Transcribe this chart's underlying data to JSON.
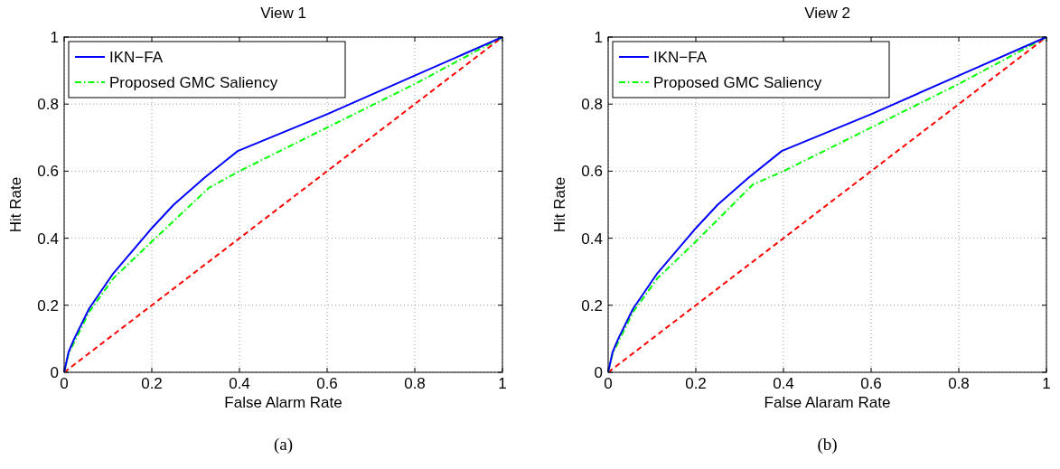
{
  "chart_data": [
    {
      "type": "line",
      "title": "View 1",
      "xlabel": "False Alarm Rate",
      "ylabel": "Hit Rate",
      "annotations": [
        "(a)"
      ],
      "xlim": [
        0,
        1
      ],
      "ylim": [
        0,
        1
      ],
      "xticks": [
        0,
        0.2,
        0.4,
        0.6,
        0.8,
        1
      ],
      "yticks": [
        0,
        0.2,
        0.4,
        0.6,
        0.8,
        1
      ],
      "grid": true,
      "legend": "top left",
      "series": [
        {
          "name": "IKN−FA",
          "color": "#0000ff",
          "line_style": "solid",
          "x": [
            0,
            0.01,
            0.023,
            0.057,
            0.112,
            0.2,
            0.25,
            0.32,
            0.396,
            0.6,
            0.8,
            1
          ],
          "values": [
            0,
            0.06,
            0.1,
            0.19,
            0.295,
            0.43,
            0.5,
            0.58,
            0.66,
            0.77,
            0.885,
            1
          ]
        },
        {
          "name": "Proposed GMC Saliency",
          "color": "#00ff00",
          "line_style": "dashdot",
          "x": [
            0,
            0.01,
            0.023,
            0.057,
            0.112,
            0.2,
            0.33,
            0.4,
            0.6,
            0.8,
            1
          ],
          "values": [
            0,
            0.055,
            0.09,
            0.18,
            0.28,
            0.39,
            0.55,
            0.6,
            0.73,
            0.86,
            1
          ]
        },
        {
          "color": "#ff0000",
          "line_style": "dashed",
          "x": [
            0,
            1
          ],
          "values": [
            0,
            1
          ]
        }
      ]
    },
    {
      "type": "line",
      "title": "View 2",
      "xlabel": "False Alaram Rate",
      "ylabel": "Hit Rate",
      "annotations": [
        "(b)"
      ],
      "xlim": [
        0,
        1
      ],
      "ylim": [
        0,
        1
      ],
      "xticks": [
        0,
        0.2,
        0.4,
        0.6,
        0.8,
        1
      ],
      "yticks": [
        0,
        0.2,
        0.4,
        0.6,
        0.8,
        1
      ],
      "grid": true,
      "legend": "top left",
      "series": [
        {
          "name": "IKN−FA",
          "color": "#0000ff",
          "line_style": "solid",
          "x": [
            0,
            0.01,
            0.023,
            0.057,
            0.112,
            0.2,
            0.25,
            0.32,
            0.396,
            0.6,
            0.8,
            1
          ],
          "values": [
            0,
            0.06,
            0.1,
            0.19,
            0.295,
            0.43,
            0.5,
            0.58,
            0.66,
            0.77,
            0.885,
            1
          ]
        },
        {
          "name": "Proposed GMC Saliency",
          "color": "#00ff00",
          "line_style": "dashdot",
          "x": [
            0,
            0.01,
            0.023,
            0.057,
            0.112,
            0.2,
            0.33,
            0.4,
            0.6,
            0.8,
            1
          ],
          "values": [
            0,
            0.055,
            0.09,
            0.18,
            0.28,
            0.39,
            0.56,
            0.6,
            0.73,
            0.86,
            1
          ]
        },
        {
          "color": "#ff0000",
          "line_style": "dashed",
          "x": [
            0,
            1
          ],
          "values": [
            0,
            1
          ]
        }
      ]
    }
  ]
}
